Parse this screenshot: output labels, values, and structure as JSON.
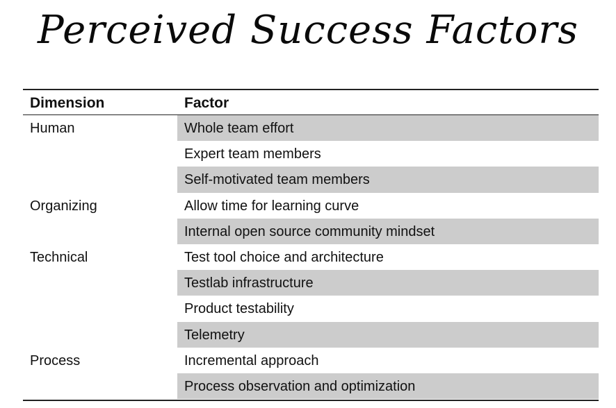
{
  "title": "Perceived Success Factors",
  "table": {
    "headers": {
      "dimension": "Dimension",
      "factor": "Factor"
    },
    "rows": [
      {
        "dimension": "Human",
        "factor": "Whole team effort",
        "shaded": true
      },
      {
        "dimension": "",
        "factor": "Expert team members",
        "shaded": false
      },
      {
        "dimension": "",
        "factor": "Self-motivated team members",
        "shaded": true
      },
      {
        "dimension": "Organizing",
        "factor": "Allow time for learning curve",
        "shaded": false
      },
      {
        "dimension": "",
        "factor": "Internal open source community mindset",
        "shaded": true
      },
      {
        "dimension": "Technical",
        "factor": "Test tool choice and architecture",
        "shaded": false
      },
      {
        "dimension": "",
        "factor": "Testlab infrastructure",
        "shaded": true
      },
      {
        "dimension": "",
        "factor": "Product testability",
        "shaded": false
      },
      {
        "dimension": "",
        "factor": "Telemetry",
        "shaded": true
      },
      {
        "dimension": "Process",
        "factor": "Incremental approach",
        "shaded": false
      },
      {
        "dimension": "",
        "factor": "Process observation and optimization",
        "shaded": true
      }
    ]
  },
  "colors": {
    "shade": "#cccccc",
    "text": "#111111",
    "rule": "#222222"
  }
}
